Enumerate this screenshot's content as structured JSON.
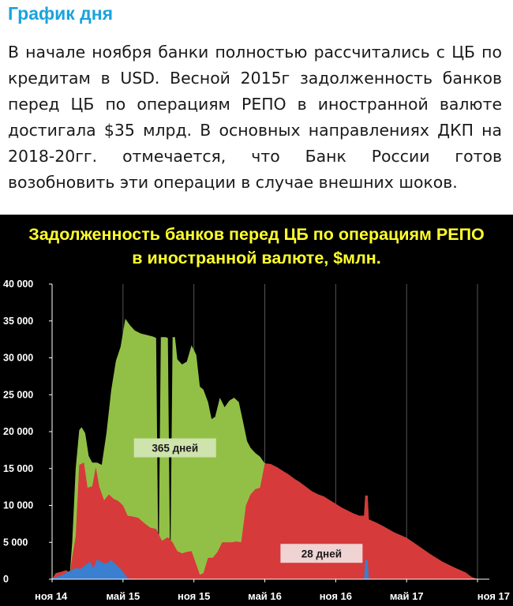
{
  "header": {
    "title": "График дня",
    "paragraph": "В начале ноября банки полностью рассчитались с ЦБ по кредитам в USD. Весной 2015г задолженность банков перед ЦБ по операциям РЕПО в иностранной валюте достигала $35 млрд. В основных направлениях ДКП на 2018-20гг. отмечается, что Банк России готов возобновить эти операции в случае внешних шоков."
  },
  "colors": {
    "title": "#1aa3dc",
    "chart_title": "#ffff2e",
    "panel_bg": "#000000",
    "green_fill": "#92c047",
    "red_fill": "#d63a3a",
    "blue_fill": "#3a7fd0",
    "grid": "#555555"
  },
  "chart_data": {
    "type": "area",
    "stacked": true,
    "title_lines": [
      "Задолженность банков перед ЦБ по операциям РЕПО",
      "в иностранной валюте, $млн."
    ],
    "ylim": [
      0,
      40000
    ],
    "yticks": [
      0,
      5000,
      10000,
      15000,
      20000,
      25000,
      30000,
      35000,
      40000
    ],
    "ytick_labels": [
      "0",
      "5 000",
      "10 000",
      "15 000",
      "20 000",
      "25 000",
      "30 000",
      "35 000",
      "40 000"
    ],
    "xlim": [
      0,
      37
    ],
    "xticks": [
      0,
      6,
      12,
      18,
      24,
      30,
      36
    ],
    "xtick_labels": [
      "ноя 14",
      "май 15",
      "ноя 15",
      "май 16",
      "ноя 16",
      "май 17",
      "ноя 17"
    ],
    "grid": "vertical",
    "series": [
      {
        "color": "#3a7fd0",
        "points": [
          [
            0,
            0
          ],
          [
            0.3,
            300
          ],
          [
            0.8,
            500
          ],
          [
            1.2,
            900
          ],
          [
            1.6,
            1200
          ],
          [
            2,
            1500
          ],
          [
            2.4,
            1400
          ],
          [
            2.8,
            1900
          ],
          [
            3.2,
            2400
          ],
          [
            3.5,
            1500
          ],
          [
            3.8,
            2700
          ],
          [
            4.2,
            2300
          ],
          [
            4.6,
            2100
          ],
          [
            5,
            2600
          ],
          [
            5.4,
            2000
          ],
          [
            5.8,
            1400
          ],
          [
            6,
            1000
          ],
          [
            6.3,
            300
          ],
          [
            6.6,
            0
          ],
          [
            26.4,
            0
          ],
          [
            26.5,
            2600
          ],
          [
            26.7,
            2600
          ],
          [
            26.8,
            0
          ],
          [
            37,
            0
          ]
        ]
      },
      {
        "color": "#d63a3a",
        "points": [
          [
            0,
            0
          ],
          [
            0.3,
            800
          ],
          [
            0.8,
            1000
          ],
          [
            1.2,
            1200
          ],
          [
            1.5,
            800
          ],
          [
            1.7,
            3000
          ],
          [
            2,
            5800
          ],
          [
            2.3,
            15500
          ],
          [
            2.7,
            15800
          ],
          [
            3,
            12400
          ],
          [
            3.4,
            12600
          ],
          [
            3.7,
            15200
          ],
          [
            4,
            12500
          ],
          [
            4.4,
            10700
          ],
          [
            4.8,
            11500
          ],
          [
            5.2,
            10900
          ],
          [
            5.6,
            10600
          ],
          [
            6,
            10000
          ],
          [
            6.4,
            8600
          ],
          [
            6.8,
            8500
          ],
          [
            7.3,
            8300
          ],
          [
            7.8,
            7600
          ],
          [
            8.3,
            7000
          ],
          [
            8.8,
            6800
          ],
          [
            9.3,
            5200
          ],
          [
            9.8,
            5700
          ],
          [
            10.2,
            5000
          ],
          [
            10.6,
            3800
          ],
          [
            11,
            3500
          ],
          [
            11.4,
            3700
          ],
          [
            11.8,
            3800
          ],
          [
            12.2,
            2000
          ],
          [
            12.5,
            600
          ],
          [
            12.8,
            800
          ],
          [
            13.2,
            2900
          ],
          [
            13.6,
            2900
          ],
          [
            14,
            3700
          ],
          [
            14.4,
            5000
          ],
          [
            14.8,
            5000
          ],
          [
            15.2,
            5000
          ],
          [
            15.6,
            5100
          ],
          [
            16,
            5000
          ],
          [
            16.4,
            10000
          ],
          [
            16.8,
            11500
          ],
          [
            17.2,
            12200
          ],
          [
            17.6,
            12400
          ],
          [
            18,
            15700
          ],
          [
            18.5,
            15600
          ],
          [
            19,
            15200
          ],
          [
            19.5,
            14700
          ],
          [
            20,
            14200
          ],
          [
            20.5,
            13600
          ],
          [
            21,
            13100
          ],
          [
            21.5,
            12500
          ],
          [
            22,
            11900
          ],
          [
            22.5,
            11500
          ],
          [
            23,
            11200
          ],
          [
            23.5,
            10700
          ],
          [
            24,
            10200
          ],
          [
            24.5,
            9700
          ],
          [
            25,
            9300
          ],
          [
            25.5,
            8900
          ],
          [
            26,
            8600
          ],
          [
            26.4,
            8600
          ],
          [
            26.5,
            11300
          ],
          [
            26.7,
            11300
          ],
          [
            26.8,
            8100
          ],
          [
            27.5,
            7600
          ],
          [
            28,
            7200
          ],
          [
            29,
            6300
          ],
          [
            30,
            5600
          ],
          [
            31,
            4500
          ],
          [
            32,
            3400
          ],
          [
            33,
            2400
          ],
          [
            34,
            1600
          ],
          [
            35,
            900
          ],
          [
            35.5,
            300
          ],
          [
            36,
            0
          ],
          [
            37,
            0
          ]
        ]
      },
      {
        "color": "#92c047",
        "points": [
          [
            0,
            0
          ],
          [
            0.3,
            800
          ],
          [
            0.8,
            1000
          ],
          [
            1.2,
            1200
          ],
          [
            1.5,
            800
          ],
          [
            1.7,
            5000
          ],
          [
            2,
            15000
          ],
          [
            2.3,
            20200
          ],
          [
            2.5,
            20600
          ],
          [
            2.8,
            19800
          ],
          [
            3.1,
            16700
          ],
          [
            3.4,
            15800
          ],
          [
            3.8,
            15800
          ],
          [
            4.2,
            15500
          ],
          [
            4.6,
            19800
          ],
          [
            5,
            25600
          ],
          [
            5.4,
            29600
          ],
          [
            5.8,
            31500
          ],
          [
            6.2,
            35300
          ],
          [
            6.6,
            34400
          ],
          [
            7,
            33700
          ],
          [
            7.5,
            33300
          ],
          [
            8,
            33100
          ],
          [
            8.5,
            32900
          ],
          [
            8.8,
            32700
          ],
          [
            9,
            0
          ],
          [
            9.2,
            32800
          ],
          [
            9.4,
            32800
          ],
          [
            9.6,
            32800
          ],
          [
            9.8,
            32700
          ],
          [
            10,
            0
          ],
          [
            10.2,
            32800
          ],
          [
            10.4,
            32800
          ],
          [
            10.6,
            29800
          ],
          [
            11,
            29100
          ],
          [
            11.4,
            29500
          ],
          [
            11.8,
            31700
          ],
          [
            12.2,
            30400
          ],
          [
            12.5,
            26100
          ],
          [
            12.8,
            25700
          ],
          [
            13.2,
            24000
          ],
          [
            13.5,
            21700
          ],
          [
            13.8,
            22000
          ],
          [
            14.2,
            24600
          ],
          [
            14.6,
            23300
          ],
          [
            15,
            24200
          ],
          [
            15.4,
            24600
          ],
          [
            15.8,
            24000
          ],
          [
            16.2,
            21000
          ],
          [
            16.5,
            18700
          ],
          [
            16.8,
            17800
          ],
          [
            17.2,
            17100
          ],
          [
            17.6,
            16600
          ],
          [
            18,
            15700
          ],
          [
            18.5,
            15600
          ],
          [
            19,
            15200
          ],
          [
            19.5,
            14700
          ],
          [
            20,
            14200
          ],
          [
            20.5,
            13600
          ],
          [
            21,
            13100
          ],
          [
            21.5,
            12500
          ],
          [
            22,
            11900
          ],
          [
            22.5,
            11500
          ],
          [
            23,
            11200
          ],
          [
            23.5,
            10700
          ],
          [
            24,
            10200
          ],
          [
            24.5,
            9700
          ],
          [
            25,
            9300
          ],
          [
            25.5,
            8900
          ],
          [
            26,
            8600
          ],
          [
            26.4,
            8600
          ],
          [
            26.5,
            11300
          ],
          [
            26.7,
            11300
          ],
          [
            26.8,
            8100
          ],
          [
            27.5,
            7600
          ],
          [
            28,
            7200
          ],
          [
            29,
            6300
          ],
          [
            30,
            5600
          ],
          [
            31,
            4500
          ],
          [
            32,
            3400
          ],
          [
            33,
            2400
          ],
          [
            34,
            1600
          ],
          [
            35,
            900
          ],
          [
            35.5,
            300
          ],
          [
            36,
            0
          ],
          [
            37,
            0
          ]
        ]
      }
    ],
    "annotations": [
      {
        "text": "365 дней",
        "x": 10.4,
        "y": 17800,
        "bg": "#cfe3ad"
      },
      {
        "text": "28 дней",
        "x": 22.8,
        "y": 3500,
        "bg": "#f0d3d3"
      }
    ]
  }
}
